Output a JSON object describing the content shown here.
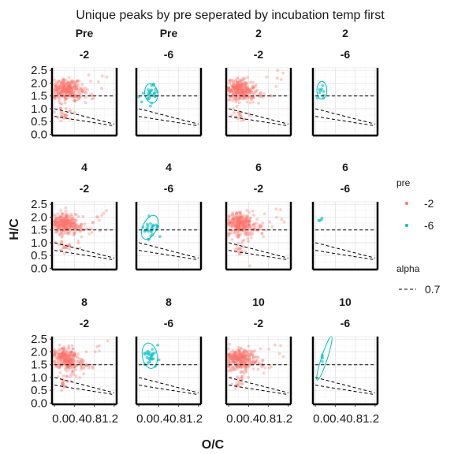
{
  "chart_data": {
    "type": "scatter",
    "title": "Unique peaks by pre seperated by incubation temp first",
    "xlabel": "O/C",
    "ylabel": "H/C",
    "xlim": [
      -0.05,
      1.25
    ],
    "ylim": [
      -0.05,
      2.6
    ],
    "x_ticks": [
      "0.0",
      "0.4",
      "0.8",
      "1.2"
    ],
    "x_tick_values": [
      0.0,
      0.4,
      0.8,
      1.2
    ],
    "x_tick_text": "0.00.40.81.2",
    "y_ticks": [
      "0.0",
      "0.5",
      "1.0",
      "1.5",
      "2.0",
      "2.5"
    ],
    "y_tick_values": [
      0.0,
      0.5,
      1.0,
      1.5,
      2.0,
      2.5
    ],
    "grid": true,
    "colors": {
      "-2": "#f8766d",
      "-6": "#00bfc4"
    },
    "legend": {
      "placement": "right",
      "color_title": "pre",
      "color_entries": [
        "-2",
        "-6"
      ],
      "linetype_title": "alpha",
      "linetype_entries": [
        "0.7"
      ]
    },
    "reference_lines": [
      {
        "name": "hc-1.5",
        "points": [
          [
            0,
            1.5
          ],
          [
            1.2,
            1.5
          ]
        ]
      },
      {
        "name": "upper-diagonal",
        "points": [
          [
            0,
            1.0
          ],
          [
            1.2,
            0.4
          ]
        ]
      },
      {
        "name": "lower-diagonal",
        "points": [
          [
            0,
            0.7
          ],
          [
            1.2,
            0.33
          ]
        ]
      }
    ],
    "facets": [
      {
        "top": "Pre",
        "bottom": "-2",
        "pre": "-2",
        "cluster": "dense"
      },
      {
        "top": "Pre",
        "bottom": "-6",
        "pre": "-6",
        "cluster": "sparse",
        "ellipse": {
          "cx": 0.25,
          "cy": 1.6,
          "rx": 0.13,
          "ry": 0.38,
          "angle": -10
        }
      },
      {
        "top": "2",
        "bottom": "-2",
        "pre": "-2",
        "cluster": "dense"
      },
      {
        "top": "2",
        "bottom": "-6",
        "pre": "-6",
        "cluster": "tiny",
        "ellipse": {
          "cx": 0.13,
          "cy": 1.72,
          "rx": 0.1,
          "ry": 0.35,
          "angle": 0
        }
      },
      {
        "top": "4",
        "bottom": "-2",
        "pre": "-2",
        "cluster": "dense"
      },
      {
        "top": "4",
        "bottom": "-6",
        "pre": "-6",
        "cluster": "sparse",
        "ellipse": {
          "cx": 0.22,
          "cy": 1.6,
          "rx": 0.14,
          "ry": 0.5,
          "angle": 25
        }
      },
      {
        "top": "6",
        "bottom": "-2",
        "pre": "-2",
        "cluster": "dense"
      },
      {
        "top": "6",
        "bottom": "-6",
        "pre": "-6",
        "cluster": "few"
      },
      {
        "top": "8",
        "bottom": "-2",
        "pre": "-2",
        "cluster": "dense"
      },
      {
        "top": "8",
        "bottom": "-6",
        "pre": "-6",
        "cluster": "sparse",
        "ellipse": {
          "cx": 0.22,
          "cy": 1.85,
          "rx": 0.15,
          "ry": 0.5,
          "angle": -10
        }
      },
      {
        "top": "10",
        "bottom": "-2",
        "pre": "-2",
        "cluster": "dense"
      },
      {
        "top": "10",
        "bottom": "-6",
        "pre": "-6",
        "cluster": "line",
        "ellipse": {
          "cx": 0.18,
          "cy": 1.75,
          "rx": 0.06,
          "ry": 0.9,
          "angle": 18
        }
      }
    ]
  }
}
